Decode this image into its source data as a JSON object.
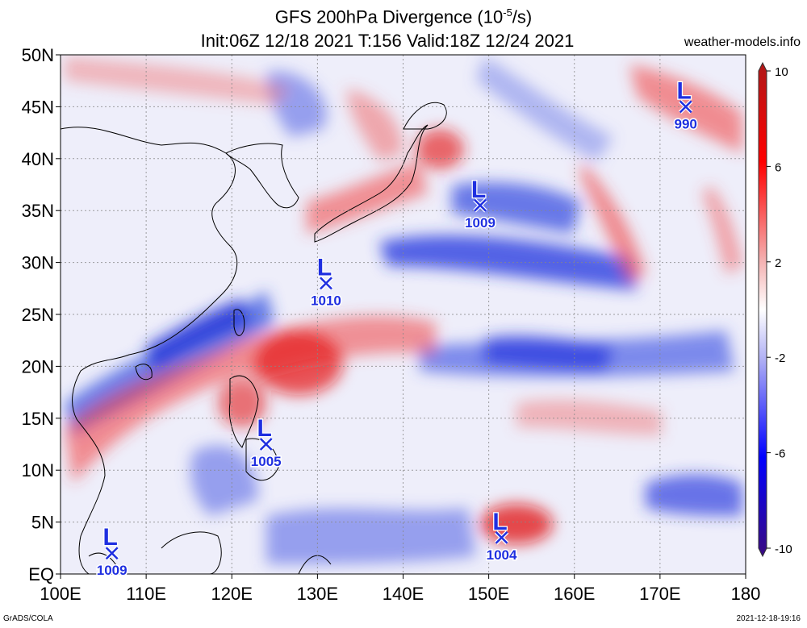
{
  "header": {
    "title_prefix": "GFS 200hPa Divergence (10",
    "title_exp": "-5",
    "title_suffix": "/s)",
    "subtitle": "Init:06Z 12/18 2021 T:156 Valid:18Z 12/24 2021",
    "site": "weather-models.info"
  },
  "footer": {
    "left": "GrADS/COLA",
    "right": "2021-12-18-19:16"
  },
  "axes": {
    "lat_labels": [
      "50N",
      "45N",
      "40N",
      "35N",
      "30N",
      "25N",
      "20N",
      "15N",
      "10N",
      "5N",
      "EQ"
    ],
    "lat_values": [
      50,
      45,
      40,
      35,
      30,
      25,
      20,
      15,
      10,
      5,
      0
    ],
    "lon_labels": [
      "100E",
      "110E",
      "120E",
      "130E",
      "140E",
      "150E",
      "160E",
      "170E",
      "180"
    ],
    "lon_values": [
      100,
      110,
      120,
      130,
      140,
      150,
      160,
      170,
      180
    ],
    "lon_range": [
      100,
      180
    ],
    "lat_range": [
      0,
      50
    ],
    "grid": true
  },
  "colorbar": {
    "labels": [
      "10",
      "6",
      "2",
      "-2",
      "-6",
      "-10"
    ],
    "values": [
      10,
      6,
      2,
      -2,
      -6,
      -10
    ],
    "colors": {
      "max": "#b01818",
      "pos": "#ff0000",
      "weak_pos": "#f4b0b0",
      "neutral": "#ffffff",
      "weak_neg": "#b0b0f4",
      "neg": "#0000ff",
      "min": "#3a0a80"
    }
  },
  "lows": [
    {
      "label": "L",
      "pressure": "990",
      "lon": 173,
      "lat": 45
    },
    {
      "label": "L",
      "pressure": "1009",
      "lon": 149,
      "lat": 35.5
    },
    {
      "label": "L",
      "pressure": "1010",
      "lon": 131,
      "lat": 28
    },
    {
      "label": "L",
      "pressure": "1005",
      "lon": 124,
      "lat": 12.5
    },
    {
      "label": "L",
      "pressure": "1004",
      "lon": 151.5,
      "lat": 3.5
    },
    {
      "label": "L",
      "pressure": "1009",
      "lon": 106,
      "lat": 2
    }
  ]
}
